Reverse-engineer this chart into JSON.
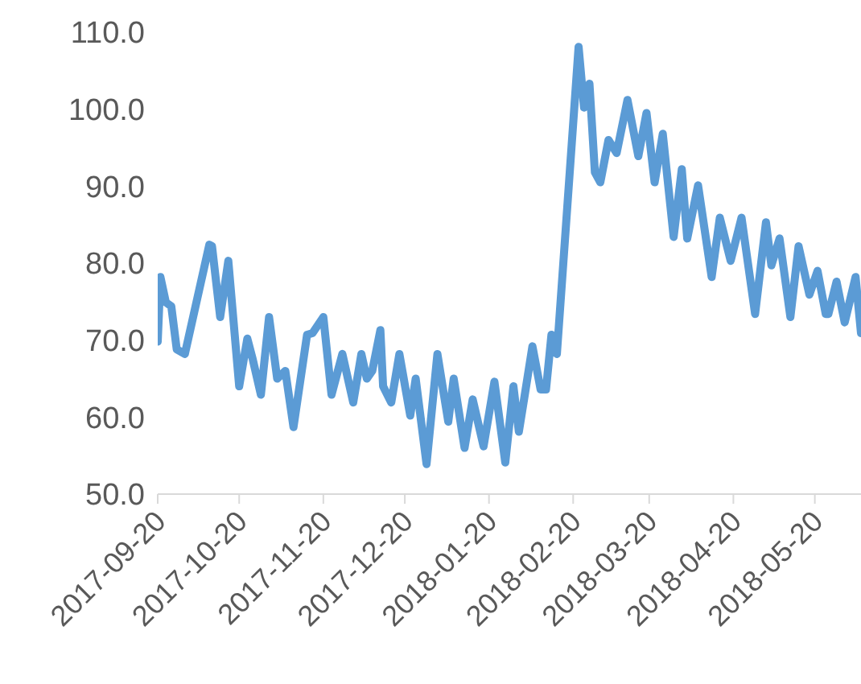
{
  "chart_data": {
    "type": "line",
    "x": [
      "2017-09-20",
      "2017-09-21",
      "2017-09-23",
      "2017-09-25",
      "2017-09-27",
      "2017-09-30",
      "2017-10-09",
      "2017-10-10",
      "2017-10-13",
      "2017-10-16",
      "2017-10-20",
      "2017-10-23",
      "2017-10-25",
      "2017-10-28",
      "2017-10-31",
      "2017-11-03",
      "2017-11-06",
      "2017-11-09",
      "2017-11-14",
      "2017-11-16",
      "2017-11-20",
      "2017-11-23",
      "2017-11-27",
      "2017-12-01",
      "2017-12-04",
      "2017-12-06",
      "2017-12-08",
      "2017-12-11",
      "2017-12-12",
      "2017-12-15",
      "2017-12-18",
      "2017-12-22",
      "2017-12-24",
      "2017-12-28",
      "2018-01-01",
      "2018-01-05",
      "2018-01-07",
      "2018-01-11",
      "2018-01-14",
      "2018-01-18",
      "2018-01-22",
      "2018-01-26",
      "2018-01-29",
      "2018-01-31",
      "2018-02-02",
      "2018-02-05",
      "2018-02-08",
      "2018-02-10",
      "2018-02-12",
      "2018-02-14",
      "2018-02-22",
      "2018-02-24",
      "2018-02-26",
      "2018-02-28",
      "2018-03-02",
      "2018-03-05",
      "2018-03-08",
      "2018-03-12",
      "2018-03-16",
      "2018-03-19",
      "2018-03-22",
      "2018-03-25",
      "2018-03-29",
      "2018-04-01",
      "2018-04-03",
      "2018-04-07",
      "2018-04-12",
      "2018-04-15",
      "2018-04-19",
      "2018-04-23",
      "2018-04-28",
      "2018-05-02",
      "2018-05-04",
      "2018-05-07",
      "2018-05-11",
      "2018-05-14",
      "2018-05-18",
      "2018-05-21",
      "2018-05-24",
      "2018-05-25",
      "2018-05-28",
      "2018-05-31",
      "2018-06-04",
      "2018-06-06"
    ],
    "series": [
      {
        "color": "#5b9bd5",
        "values": [
          69.8,
          78.2,
          74.9,
          74.4,
          68.8,
          68.2,
          82.4,
          82.2,
          73,
          80.3,
          64,
          70.2,
          67.5,
          62.9,
          73,
          65,
          66,
          58.7,
          70.7,
          70.9,
          73,
          62.9,
          68.2,
          61.9,
          68.2,
          65,
          66,
          71.3,
          64,
          61.9,
          68.2,
          60.2,
          65,
          53.9,
          68.2,
          59.4,
          65,
          56,
          62.3,
          56.2,
          64.6,
          54.1,
          64,
          58.1,
          62.5,
          69.2,
          63.6,
          63.6,
          70.7,
          68.2,
          108.1,
          100.2,
          103.3,
          91.8,
          90.5,
          96,
          94.3,
          101.2,
          93.9,
          99.5,
          90.5,
          96.8,
          83.4,
          92.2,
          83.2,
          90.1,
          78.2,
          85.9,
          80.3,
          85.9,
          73.4,
          85.3,
          79.7,
          83.2,
          73,
          82.2,
          75.9,
          79,
          73.4,
          73.4,
          77.6,
          72.3,
          78.2,
          70.9
        ]
      }
    ],
    "xlim": [
      "2017-09-20",
      "2018-06-06"
    ],
    "xticks": [
      "2017-09-20",
      "2017-10-20",
      "2017-11-20",
      "2017-12-20",
      "2018-01-20",
      "2018-02-20",
      "2018-03-20",
      "2018-04-20",
      "2018-05-20"
    ],
    "ylim": [
      50,
      110
    ],
    "yticks": [
      {
        "value": 50,
        "label": "50.0"
      },
      {
        "value": 60,
        "label": "60.0"
      },
      {
        "value": 70,
        "label": "70.0"
      },
      {
        "value": 80,
        "label": "80.0"
      },
      {
        "value": 90,
        "label": "90.0"
      },
      {
        "value": 100,
        "label": "100.0"
      },
      {
        "value": 110,
        "label": "110.0"
      }
    ],
    "grid": false,
    "legend": false,
    "marker": "none",
    "line_style": "solid"
  }
}
